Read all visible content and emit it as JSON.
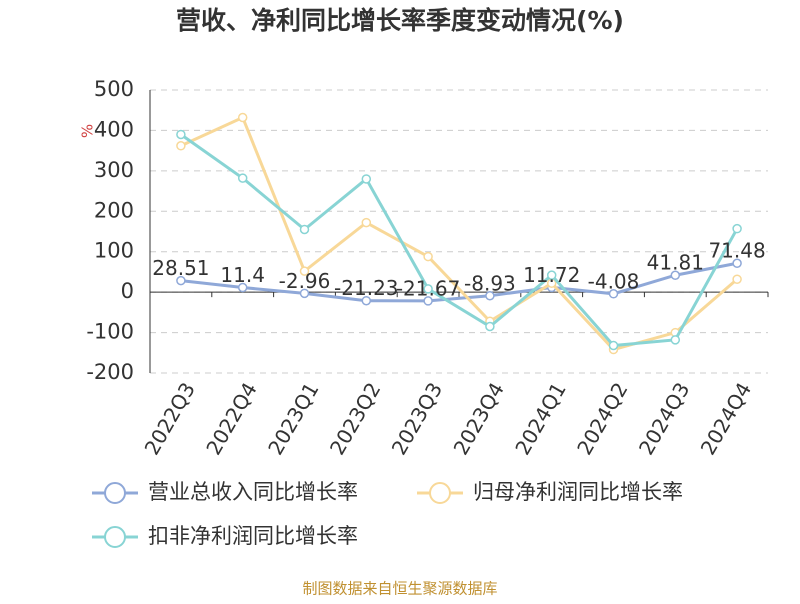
{
  "chart_data": {
    "type": "line",
    "title": "营收、净利同比增长率季度变动情况(%)",
    "y_label": "%",
    "categories": [
      "2022Q3",
      "2022Q4",
      "2023Q1",
      "2023Q2",
      "2023Q3",
      "2023Q4",
      "2024Q1",
      "2024Q2",
      "2024Q3",
      "2024Q4"
    ],
    "series": [
      {
        "name": "营业总收入同比增长率",
        "color": "#8fa8d8",
        "values": [
          28.51,
          11.4,
          -2.96,
          -21.23,
          -21.67,
          -8.93,
          11.72,
          -4.08,
          41.81,
          71.48
        ],
        "data_labels": true
      },
      {
        "name": "归母净利润同比增长率",
        "color": "#f8d898",
        "values": [
          362,
          432,
          52,
          172,
          88,
          -72,
          22,
          -142,
          -100,
          32
        ]
      },
      {
        "name": "扣非净利润同比增长率",
        "color": "#88d4d4",
        "values": [
          390,
          282,
          155,
          280,
          8,
          -85,
          42,
          -132,
          -118,
          157
        ]
      }
    ],
    "ylim": [
      -200,
      500
    ],
    "yticks": [
      -200,
      -100,
      0,
      100,
      200,
      300,
      400,
      500
    ],
    "grid": true,
    "legend": "bottom",
    "source": "制图数据来自恒生聚源数据库"
  }
}
